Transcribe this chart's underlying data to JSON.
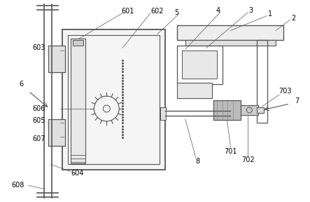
{
  "bg_color": "#ffffff",
  "line_color": "#555555",
  "label_color": "#000000",
  "lw": 1.0
}
